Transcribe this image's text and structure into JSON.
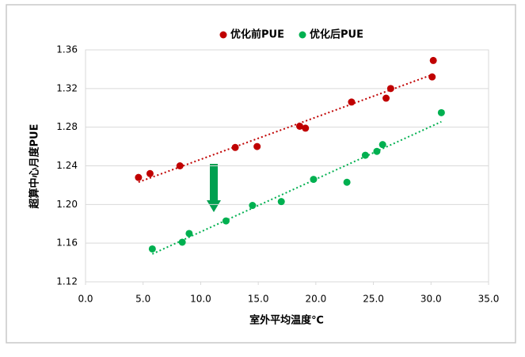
{
  "chart_data": {
    "type": "scatter",
    "xlabel": "室外平均温度℃",
    "ylabel": "超算中心月度PUE",
    "xlim": [
      0,
      35
    ],
    "ylim": [
      1.12,
      1.36
    ],
    "xticks": [
      {
        "value": 0,
        "label": "0.0"
      },
      {
        "value": 5,
        "label": "5.0"
      },
      {
        "value": 10,
        "label": "10.0"
      },
      {
        "value": 15,
        "label": "15.0"
      },
      {
        "value": 20,
        "label": "20.0"
      },
      {
        "value": 25,
        "label": "25.0"
      },
      {
        "value": 30,
        "label": "30.0"
      },
      {
        "value": 35,
        "label": "35.0"
      }
    ],
    "yticks": [
      1.12,
      1.16,
      {
        "value": 1.2,
        "label": "1.20"
      },
      1.24,
      1.28,
      1.32,
      1.36
    ],
    "grid": true,
    "trendline": true,
    "legend": "top",
    "series": [
      {
        "name": "优化前PUE",
        "color": "#c00000",
        "x": [
          4.6,
          5.6,
          8.2,
          13.0,
          14.9,
          18.6,
          19.1,
          23.1,
          26.1,
          26.5,
          30.1,
          30.2
        ],
        "values": [
          1.228,
          1.232,
          1.24,
          1.259,
          1.26,
          1.281,
          1.279,
          1.306,
          1.31,
          1.32,
          1.332,
          1.349
        ]
      },
      {
        "name": "优化后PUE",
        "color": "#00b050",
        "x": [
          5.8,
          8.4,
          9.0,
          12.2,
          14.5,
          17.0,
          19.8,
          22.7,
          24.3,
          25.3,
          25.8,
          30.9
        ],
        "values": [
          1.154,
          1.161,
          1.17,
          1.183,
          1.199,
          1.203,
          1.226,
          1.223,
          1.251,
          1.255,
          1.262,
          1.295
        ]
      }
    ]
  }
}
